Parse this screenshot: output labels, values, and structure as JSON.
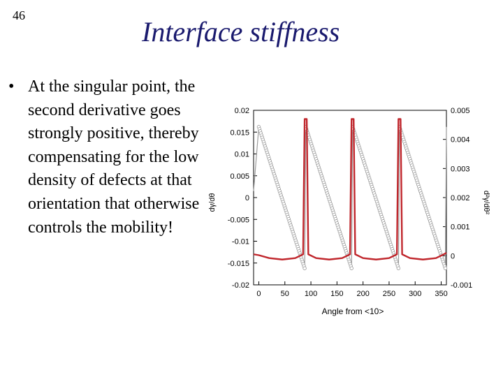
{
  "slide": {
    "number": "46",
    "title": "Interface stiffness",
    "bullet_text": "At the singular point, the second derivative goes strongly positive, thereby compensating for the low density of defects at that orientation that otherwise controls the mobility!"
  },
  "chart_data": {
    "type": "line",
    "title": "",
    "xlabel": "Angle from <10>",
    "ylabel_left": "dγ/dθ",
    "ylabel_right": "d²γ/dθ²",
    "xlim": [
      -10,
      360
    ],
    "ylim_left": [
      -0.02,
      0.02
    ],
    "ylim_right": [
      -0.001,
      0.005
    ],
    "x_ticks": [
      "0",
      "50",
      "100",
      "150",
      "200",
      "250",
      "300",
      "350"
    ],
    "y_left_ticks": [
      "0.02",
      "0.015",
      "0.01",
      "0.005",
      "0",
      "-0.005",
      "-0.01",
      "-0.015",
      "-0.02"
    ],
    "y_right_ticks": [
      "0.005",
      "0.004",
      "0.003",
      "0.002",
      "0.001",
      "0",
      "-0.001"
    ],
    "colors": {
      "first_derivative": "#9a9a9a",
      "second_derivative": "#c0262c",
      "axes": "#000000"
    },
    "series": [
      {
        "axis": "left",
        "values": [
          [
            -10,
            0.0015
          ],
          [
            0,
            0.0162
          ],
          [
            88,
            -0.0162
          ],
          [
            90,
            0.0162
          ],
          [
            178,
            -0.0162
          ],
          [
            180,
            0.0162
          ],
          [
            268,
            -0.0162
          ],
          [
            270,
            0.0162
          ],
          [
            358,
            -0.0162
          ],
          [
            360,
            0.0162
          ]
        ]
      },
      {
        "axis": "right",
        "values": [
          [
            -10,
            5e-05
          ],
          [
            0,
            2e-05
          ],
          [
            20,
            -8e-05
          ],
          [
            45,
            -0.00013
          ],
          [
            70,
            -8e-05
          ],
          [
            85,
            5e-05
          ],
          [
            88,
            0.0047
          ],
          [
            92,
            0.0047
          ],
          [
            95,
            5e-05
          ],
          [
            110,
            -8e-05
          ],
          [
            135,
            -0.00013
          ],
          [
            160,
            -8e-05
          ],
          [
            175,
            5e-05
          ],
          [
            178,
            0.0047
          ],
          [
            182,
            0.0047
          ],
          [
            185,
            5e-05
          ],
          [
            200,
            -8e-05
          ],
          [
            225,
            -0.00013
          ],
          [
            250,
            -8e-05
          ],
          [
            265,
            5e-05
          ],
          [
            268,
            0.0047
          ],
          [
            272,
            0.0047
          ],
          [
            275,
            5e-05
          ],
          [
            290,
            -8e-05
          ],
          [
            315,
            -0.00013
          ],
          [
            340,
            -8e-05
          ],
          [
            355,
            5e-05
          ],
          [
            360,
            0.0001
          ]
        ]
      }
    ]
  }
}
